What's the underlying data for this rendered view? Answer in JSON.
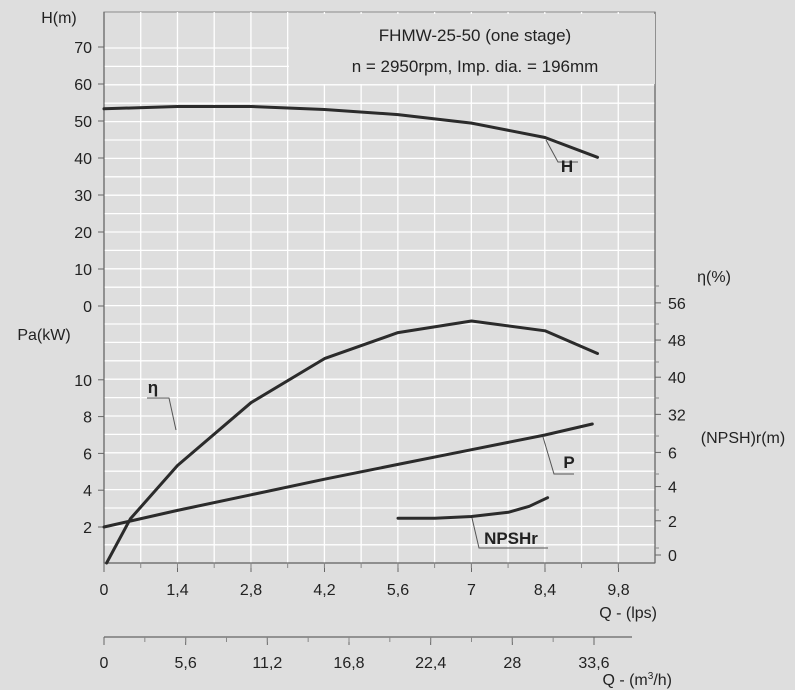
{
  "chart_data": {
    "type": "line",
    "title": "FHMW-25-50 (one stage)",
    "subtitle": "n = 2950rpm, Imp. dia. = 196mm",
    "xlabel": "Q - (lps)",
    "x2label": "Q - (m³/h)",
    "ylabel_head": "H(m)",
    "ylabel_power": "Pa(kW)",
    "ylabel_eff": "η(%)",
    "ylabel_npsh": "(NPSH)r(m)",
    "x_ticks": [
      "0",
      "1,4",
      "2,8",
      "4,2",
      "5,6",
      "7",
      "8,4",
      "9,8"
    ],
    "x2_ticks": [
      "0",
      "5,6",
      "11,2",
      "16,8",
      "22,4",
      "28",
      "33,6"
    ],
    "head_ticks": [
      "0",
      "10",
      "20",
      "30",
      "40",
      "50",
      "60",
      "70"
    ],
    "power_ticks": [
      "2",
      "4",
      "6",
      "8",
      "10"
    ],
    "eff_ticks": [
      "32",
      "40",
      "48",
      "56"
    ],
    "npsh_ticks": [
      "0",
      "2",
      "4",
      "6"
    ],
    "series": [
      {
        "name": "H",
        "color": "#2b2b2b",
        "points": [
          [
            0,
            53.6
          ],
          [
            1.4,
            54.2
          ],
          [
            2.8,
            54.2
          ],
          [
            4.2,
            53.4
          ],
          [
            5.6,
            52.0
          ],
          [
            7.0,
            49.7
          ],
          [
            8.4,
            45.8
          ],
          [
            9.4,
            40.4
          ]
        ]
      },
      {
        "name": "η",
        "color": "#2b2b2b",
        "points": [
          [
            0.05,
            0
          ],
          [
            0.5,
            9.5
          ],
          [
            1.4,
            21.0
          ],
          [
            2.8,
            34.5
          ],
          [
            4.2,
            44.0
          ],
          [
            5.6,
            49.6
          ],
          [
            7.0,
            52.1
          ],
          [
            8.4,
            50.0
          ],
          [
            9.4,
            45.1
          ]
        ]
      },
      {
        "name": "P",
        "color": "#2b2b2b",
        "points": [
          [
            0,
            2.0
          ],
          [
            1.4,
            2.9
          ],
          [
            2.8,
            3.75
          ],
          [
            4.2,
            4.6
          ],
          [
            5.6,
            5.4
          ],
          [
            7.0,
            6.2
          ],
          [
            8.4,
            7.0
          ],
          [
            9.3,
            7.6
          ]
        ]
      },
      {
        "name": "NPSHr",
        "color": "#2b2b2b",
        "points": [
          [
            5.6,
            2.15
          ],
          [
            6.3,
            2.15
          ],
          [
            7.0,
            2.25
          ],
          [
            7.7,
            2.5
          ],
          [
            8.1,
            2.85
          ],
          [
            8.45,
            3.35
          ]
        ]
      }
    ]
  }
}
